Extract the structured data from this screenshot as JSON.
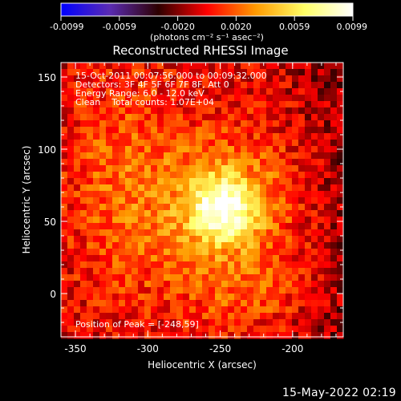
{
  "chart_data": {
    "type": "heatmap",
    "title": "Reconstructed RHESSI Image",
    "xlabel": "Heliocentric X (arcsec)",
    "ylabel": "Heliocentric Y (arcsec)",
    "xlim": [
      -360,
      -165
    ],
    "ylim": [
      -30,
      160
    ],
    "xticks": [
      -350,
      -300,
      -250,
      -200
    ],
    "yticks": [
      0,
      50,
      100,
      150
    ],
    "colorbar": {
      "label": "(photons cm⁻² s⁻¹ asec⁻²)",
      "min": -0.0099,
      "max": 0.0099,
      "ticks": [
        "-0.0099",
        "-0.0059",
        "-0.0020",
        "0.0020",
        "0.0059",
        "0.0099"
      ],
      "colors": [
        "#0000ff",
        "#5a2bb3",
        "#2d0000",
        "#ff0000",
        "#ff9a00",
        "#ffff66",
        "#ffffff"
      ]
    },
    "annotations": [
      "15-Oct-2011 00:07:56.000 to 00:09:32.000",
      "Detectors: 3F 4F 5F 6F 7F 8F, Att 0",
      "Energy Range: 6.0 - 12.0 keV",
      "Clean    Total counts: 1.07E+04"
    ],
    "peak": {
      "label": "Position of Peak = [-248,59]",
      "x": -248,
      "y": 59,
      "value": 0.0099
    }
  },
  "footer": {
    "date": "15-May-2022 02:19"
  }
}
